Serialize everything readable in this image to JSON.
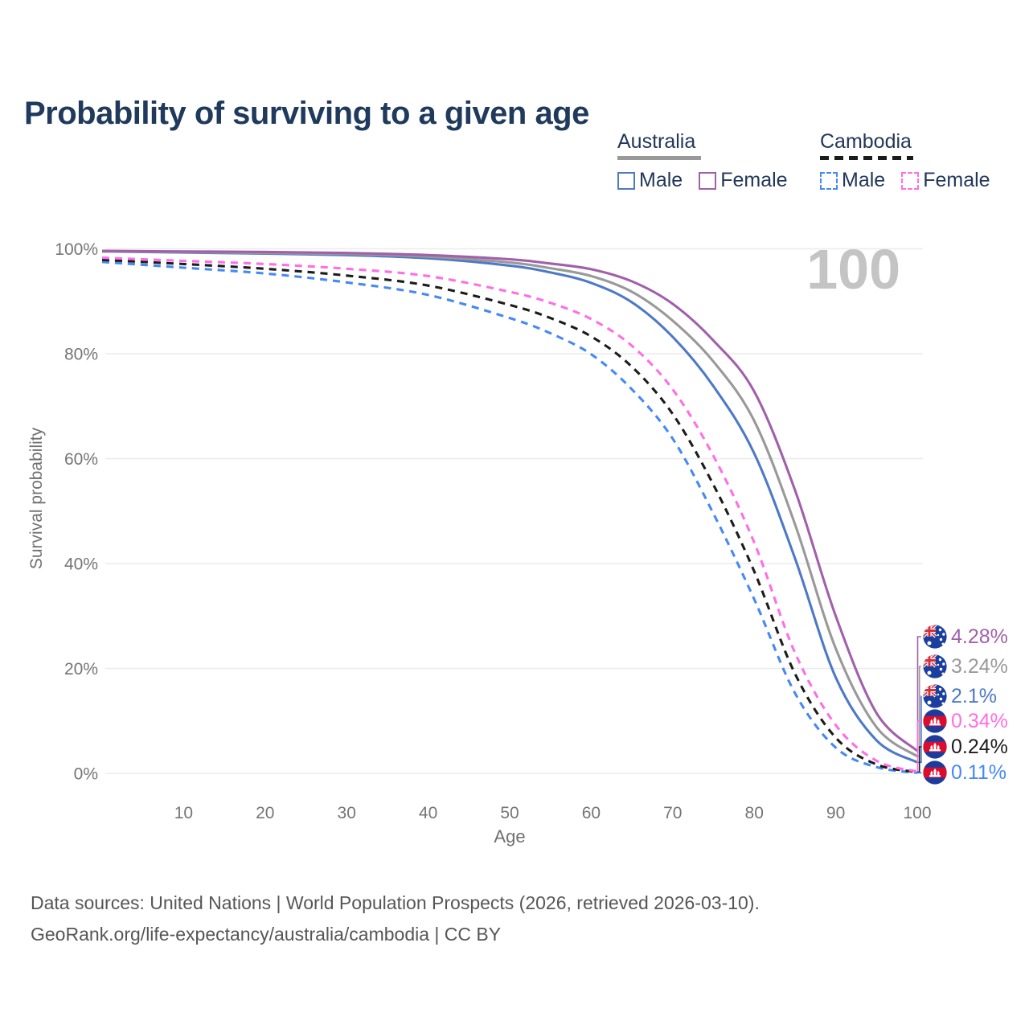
{
  "title": "Probability of surviving to a given age",
  "legend": {
    "groups": [
      {
        "label": "Australia",
        "line_style": "solid",
        "underline_color": "#999999",
        "items": [
          {
            "label": "Male",
            "color": "#4d79c7",
            "dashed": false
          },
          {
            "label": "Female",
            "color": "#a160aa",
            "dashed": false
          }
        ]
      },
      {
        "label": "Cambodia",
        "line_style": "dashed",
        "underline_color": "#1b1b1b",
        "items": [
          {
            "label": "Male",
            "color": "#4589f5",
            "dashed": true
          },
          {
            "label": "Female",
            "color": "#ff6ee4",
            "dashed": true
          }
        ]
      }
    ]
  },
  "hover_age_indicator": "100",
  "chart_data": {
    "type": "line",
    "title": "Probability of surviving to a given age",
    "xlabel": "Age",
    "ylabel": "Survival probability",
    "xlim": [
      0,
      100
    ],
    "ylim": [
      0,
      100
    ],
    "grid": "horizontal",
    "legend_position": "top-right",
    "x_ticks": [
      10,
      20,
      30,
      40,
      50,
      60,
      70,
      80,
      90,
      100
    ],
    "y_ticks": [
      "0%",
      "20%",
      "40%",
      "60%",
      "80%",
      "100%"
    ],
    "x": [
      0,
      10,
      20,
      30,
      40,
      50,
      55,
      60,
      65,
      70,
      75,
      80,
      85,
      90,
      95,
      100
    ],
    "series": [
      {
        "name": "Australia Female",
        "country": "australia",
        "color": "#a160aa",
        "dashed": false,
        "end_label": "4.28%",
        "end_value": 4.28,
        "values": [
          99.6,
          99.5,
          99.4,
          99.2,
          98.8,
          98.0,
          97.2,
          96.1,
          93.8,
          89.5,
          82.5,
          72.8,
          54.0,
          30.0,
          11.5,
          4.28
        ]
      },
      {
        "name": "Australia Both sexes",
        "country": "australia",
        "color": "#999999",
        "dashed": false,
        "end_label": "3.24%",
        "end_value": 3.24,
        "values": [
          99.5,
          99.4,
          99.2,
          99.0,
          98.5,
          97.4,
          96.3,
          94.8,
          91.8,
          86.3,
          78.5,
          67.2,
          47.5,
          23.8,
          8.8,
          3.24
        ]
      },
      {
        "name": "Australia Male",
        "country": "australia",
        "color": "#4d79c7",
        "dashed": false,
        "end_label": "2.1%",
        "end_value": 2.1,
        "values": [
          99.5,
          99.3,
          99.1,
          98.8,
          98.2,
          96.8,
          95.5,
          93.5,
          89.8,
          83.2,
          73.8,
          61.0,
          41.0,
          18.3,
          6.3,
          2.1
        ]
      },
      {
        "name": "Cambodia Female",
        "country": "cambodia",
        "color": "#ff6ee4",
        "dashed": true,
        "end_label": "0.34%",
        "end_value": 0.34,
        "values": [
          98.3,
          97.7,
          97.1,
          96.2,
          94.8,
          91.8,
          89.7,
          86.6,
          81.5,
          73.2,
          60.5,
          44.0,
          23.0,
          9.2,
          2.4,
          0.34
        ]
      },
      {
        "name": "Cambodia Both sexes",
        "country": "cambodia",
        "color": "#1c1c1c",
        "dashed": true,
        "end_label": "0.24%",
        "end_value": 0.24,
        "values": [
          97.9,
          97.1,
          96.2,
          94.9,
          93.0,
          89.3,
          86.8,
          83.3,
          77.5,
          68.5,
          55.0,
          38.5,
          19.0,
          6.8,
          1.7,
          0.24
        ]
      },
      {
        "name": "Cambodia Male",
        "country": "cambodia",
        "color": "#4589f5",
        "dashed": true,
        "end_label": "0.11%",
        "end_value": 0.11,
        "values": [
          97.5,
          96.4,
          95.3,
          93.6,
          91.2,
          86.8,
          83.9,
          79.9,
          73.2,
          63.8,
          49.5,
          33.2,
          15.3,
          4.9,
          1.2,
          0.11
        ]
      }
    ]
  },
  "footer": {
    "line1": "Data sources: United Nations | World Population Prospects (2026, retrieved 2026-03-10).",
    "line2": "GeoRank.org/life-expectancy/australia/cambodia | CC BY"
  }
}
